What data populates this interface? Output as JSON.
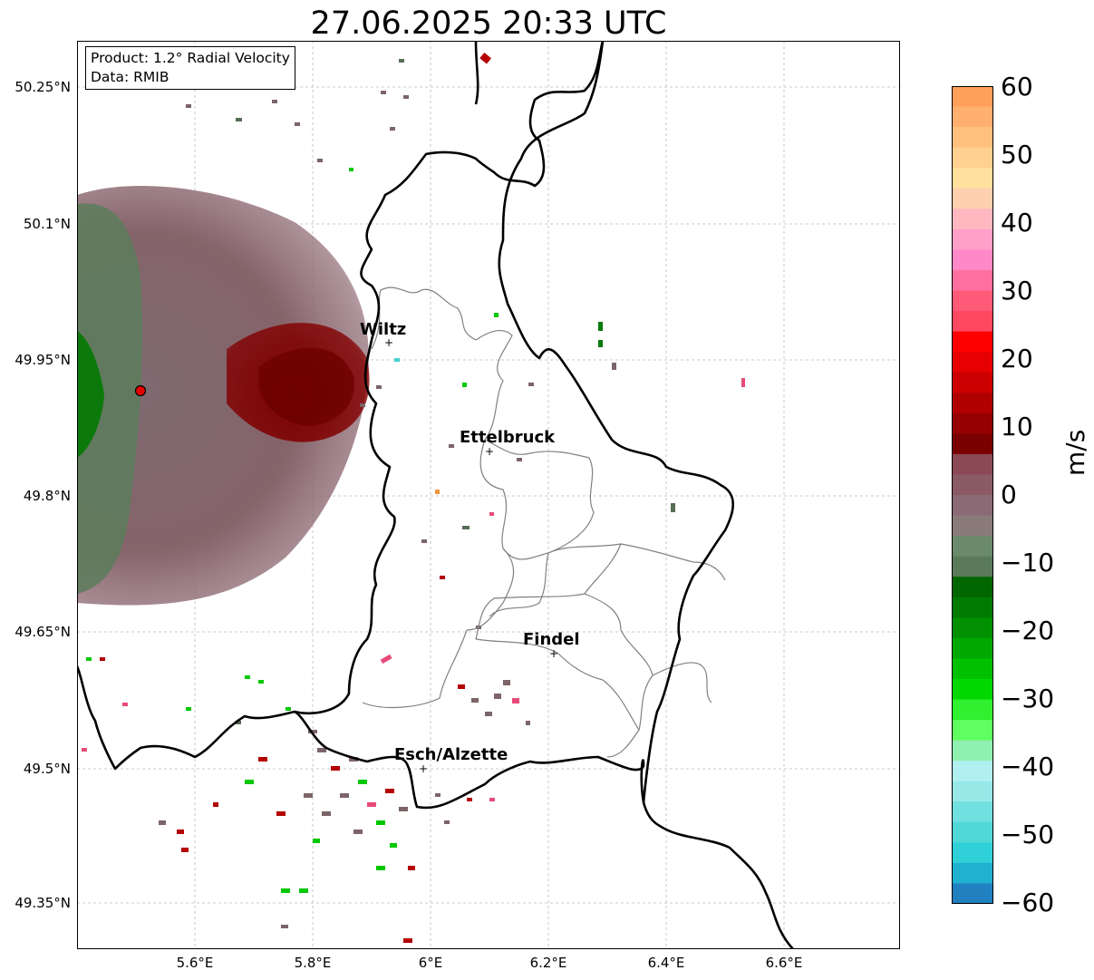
{
  "title": "27.06.2025 20:33 UTC",
  "infobox": {
    "line1": "Product: 1.2° Radial Velocity",
    "line2": "Data: RMIB"
  },
  "axes": {
    "lat_ticks": [
      "50.25°N",
      "50.1°N",
      "49.95°N",
      "49.8°N",
      "49.65°N",
      "49.5°N",
      "49.35°N"
    ],
    "lon_ticks": [
      "5.6°E",
      "5.8°E",
      "6°E",
      "6.2°E",
      "6.4°E",
      "6.6°E"
    ],
    "grid": true
  },
  "places": [
    {
      "name": "Wiltz"
    },
    {
      "name": "Ettelbruck"
    },
    {
      "name": "Findel"
    },
    {
      "name": "Esch/Alzette"
    }
  ],
  "radar_site": {
    "color": "#e60000"
  },
  "colorbar": {
    "label": "m/s",
    "ticks": [
      "60",
      "50",
      "40",
      "30",
      "20",
      "10",
      "0",
      "−10",
      "−20",
      "−30",
      "−40",
      "−50",
      "−60"
    ],
    "min": -60,
    "max": 60
  }
}
